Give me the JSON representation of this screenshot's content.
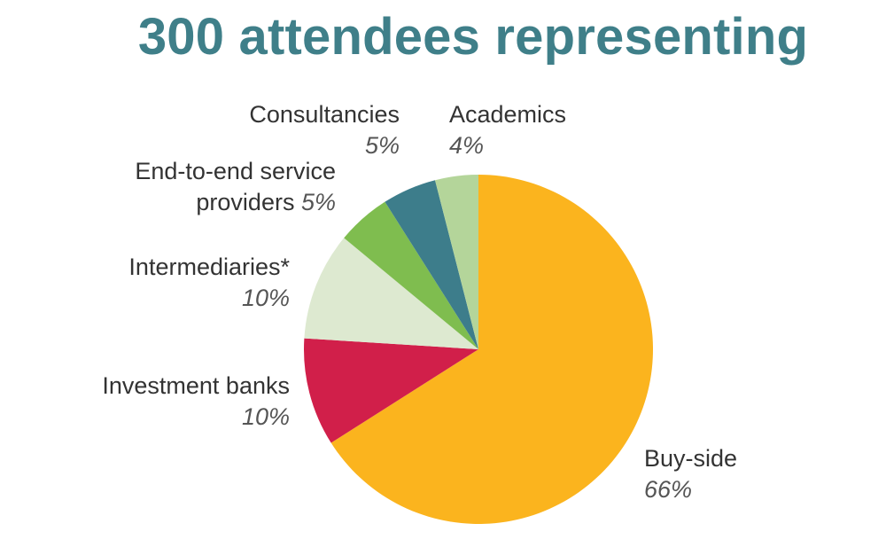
{
  "title": "300 attendees representing",
  "chart_data": {
    "type": "pie",
    "title": "300 attendees representing",
    "start_angle_deg": 0,
    "direction": "clockwise",
    "slices": [
      {
        "label": "Buy-side",
        "label_line2": "",
        "value": 66,
        "value_text": "66%",
        "color": "#fbb41e"
      },
      {
        "label": "Investment banks",
        "label_line2": "",
        "value": 10,
        "value_text": "10%",
        "color": "#d11f4a"
      },
      {
        "label": "Intermediaries*",
        "label_line2": "",
        "value": 10,
        "value_text": "10%",
        "color": "#dde9d0"
      },
      {
        "label": "End-to-end service",
        "label_line2": "providers",
        "value": 5,
        "value_text": "5%",
        "color": "#7fbd4f"
      },
      {
        "label": "Consultancies",
        "label_line2": "",
        "value": 5,
        "value_text": "5%",
        "color": "#3d7d8b"
      },
      {
        "label": "Academics",
        "label_line2": "",
        "value": 4,
        "value_text": "4%",
        "color": "#b4d59a"
      }
    ]
  }
}
